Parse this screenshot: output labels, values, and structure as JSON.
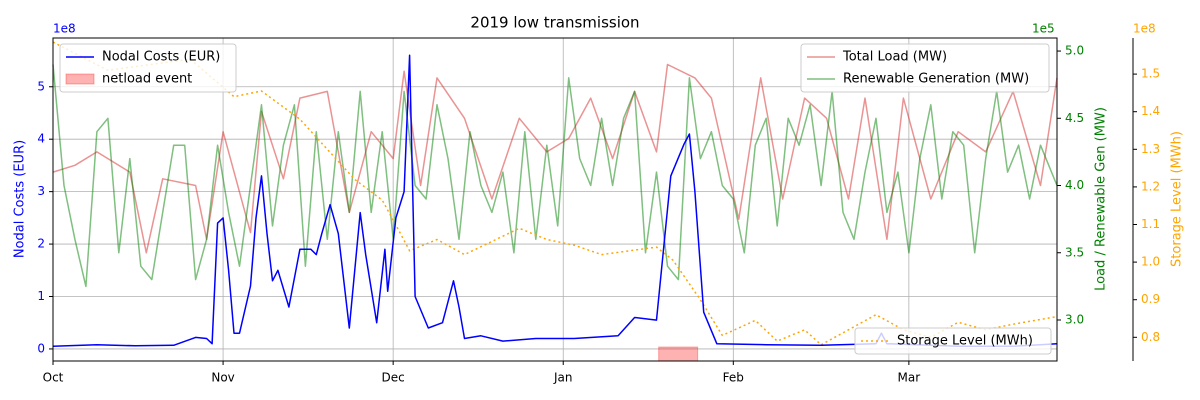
{
  "chart_data": {
    "type": "line",
    "title": "2019 low transmission",
    "grid": true,
    "xlim": [
      0,
      183
    ],
    "xticks": [
      {
        "value": 0,
        "label": "Oct"
      },
      {
        "value": 31,
        "label": "Nov"
      },
      {
        "value": 62,
        "label": "Dec"
      },
      {
        "value": 93,
        "label": "Jan"
      },
      {
        "value": 124,
        "label": "Feb"
      },
      {
        "value": 156,
        "label": "Mar"
      }
    ],
    "ylabel": "Nodal Costs (EUR)",
    "y_offset_text": "1e8",
    "ylim": [
      -0.23,
      5.93
    ],
    "yticks": [
      0,
      1,
      2,
      3,
      4,
      5
    ],
    "y2label": "Load / Renewable Gen (MW)",
    "y2_offset_text": "1e5",
    "y2lim": [
      2.695,
      5.097
    ],
    "y2ticks": [
      {
        "value": 3,
        "label": "3.0"
      },
      3.5,
      {
        "value": 4,
        "label": "4.0"
      },
      4.5,
      {
        "value": 5,
        "label": "5.0"
      }
    ],
    "y3label": "Storage Level (MWh)",
    "y3_offset_text": "1e8",
    "y3lim": [
      0.737,
      1.596
    ],
    "y3ticks": [
      0.8,
      0.9,
      {
        "value": 1,
        "label": "1.0"
      },
      1.1,
      1.2,
      1.3,
      1.4,
      1.5
    ],
    "spans": {
      "name": "netload event",
      "color": "#ff0000",
      "ranges": [
        [
          110.4,
          117.5
        ]
      ]
    },
    "series": [
      {
        "name": "Total Load (MW)",
        "color": "#d62728",
        "axis": "y2",
        "legend": "upper right",
        "x": [
          0,
          4,
          8,
          14,
          17,
          20,
          26,
          28,
          31,
          36,
          38,
          42,
          45,
          50,
          54,
          58,
          62,
          64,
          67,
          70,
          75,
          80,
          85,
          90,
          94,
          98,
          102,
          106,
          110,
          112,
          117,
          120,
          125,
          129,
          133,
          137,
          141,
          145,
          148,
          152,
          155,
          160,
          165,
          170,
          175,
          180,
          183
        ],
        "values": [
          4.1,
          4.15,
          4.25,
          4.1,
          3.5,
          4.05,
          4.0,
          3.6,
          4.4,
          3.65,
          4.55,
          4.05,
          4.65,
          4.7,
          3.8,
          4.4,
          4.2,
          4.85,
          4.0,
          4.8,
          4.5,
          3.9,
          4.5,
          4.25,
          4.35,
          4.65,
          4.2,
          4.7,
          4.25,
          4.9,
          4.8,
          4.65,
          3.75,
          4.8,
          3.9,
          4.65,
          4.5,
          3.9,
          4.65,
          3.6,
          4.65,
          3.9,
          4.4,
          4.25,
          4.7,
          4.0,
          4.8
        ]
      },
      {
        "name": "Renewable Generation (MW)",
        "color": "#008000",
        "axis": "y2",
        "legend": "upper right",
        "x": [
          0,
          2,
          4,
          6,
          8,
          10,
          12,
          14,
          16,
          18,
          20,
          22,
          24,
          26,
          28,
          30,
          32,
          34,
          36,
          38,
          40,
          42,
          44,
          46,
          48,
          50,
          52,
          54,
          56,
          58,
          60,
          62,
          64,
          66,
          68,
          70,
          72,
          74,
          76,
          78,
          80,
          82,
          84,
          86,
          88,
          90,
          92,
          94,
          96,
          98,
          100,
          102,
          104,
          106,
          108,
          110,
          112,
          114,
          116,
          118,
          120,
          122,
          124,
          126,
          128,
          130,
          132,
          134,
          136,
          138,
          140,
          142,
          144,
          146,
          148,
          150,
          152,
          154,
          156,
          158,
          160,
          162,
          164,
          166,
          168,
          170,
          172,
          174,
          176,
          178,
          180,
          183
        ],
        "values": [
          4.9,
          4.0,
          3.6,
          3.25,
          4.4,
          4.5,
          3.5,
          4.2,
          3.4,
          3.3,
          3.8,
          4.3,
          4.3,
          3.3,
          3.6,
          4.3,
          3.8,
          3.4,
          4.0,
          4.6,
          3.7,
          4.3,
          4.6,
          3.4,
          4.4,
          3.6,
          4.4,
          3.8,
          4.7,
          3.8,
          4.4,
          3.6,
          4.7,
          4.0,
          3.9,
          4.6,
          4.2,
          3.6,
          4.4,
          4.0,
          3.8,
          4.1,
          3.5,
          4.4,
          3.6,
          4.3,
          3.7,
          4.8,
          4.2,
          4.0,
          4.5,
          4.0,
          4.5,
          4.7,
          3.5,
          4.1,
          3.4,
          3.3,
          4.8,
          4.2,
          4.4,
          4.0,
          3.9,
          3.5,
          4.3,
          4.5,
          3.7,
          4.5,
          4.3,
          4.6,
          4.0,
          4.7,
          3.8,
          3.6,
          4.1,
          4.5,
          3.8,
          4.1,
          3.5,
          4.2,
          4.6,
          3.9,
          4.4,
          4.3,
          3.5,
          4.2,
          4.7,
          4.1,
          4.3,
          3.9,
          4.3,
          4.0
        ]
      },
      {
        "name": "Storage Level (MWh)",
        "color": "#ffa500",
        "axis": "y3",
        "legend": "lower right",
        "x": [
          0,
          10,
          25,
          33,
          38,
          45,
          55,
          60,
          63,
          65,
          70,
          75,
          85,
          90,
          95,
          100,
          110,
          113,
          118,
          122,
          128,
          132,
          137,
          140,
          145,
          150,
          155,
          160,
          165,
          170,
          175,
          183
        ],
        "values": [
          1.585,
          1.51,
          1.54,
          1.44,
          1.455,
          1.38,
          1.22,
          1.165,
          1.085,
          1.03,
          1.06,
          1.02,
          1.09,
          1.06,
          1.045,
          1.02,
          1.04,
          1.005,
          0.9,
          0.805,
          0.845,
          0.79,
          0.82,
          0.78,
          0.82,
          0.86,
          0.82,
          0.8,
          0.84,
          0.82,
          0.835,
          0.855
        ]
      },
      {
        "name": "Nodal Costs (EUR)",
        "color": "#0000ff",
        "axis": "y",
        "legend": "upper left",
        "x": [
          0,
          8,
          15,
          22,
          26,
          28,
          29,
          30,
          31,
          32,
          33,
          34,
          36,
          37,
          38,
          39,
          40,
          41,
          43,
          45,
          47,
          48,
          49,
          50.5,
          52,
          54,
          56,
          57,
          59,
          60.5,
          61,
          62.5,
          64,
          65,
          66,
          68.4,
          71,
          73,
          74,
          75,
          78,
          82,
          88,
          95,
          103,
          106,
          110,
          112.6,
          115,
          116,
          117,
          118.6,
          121,
          130,
          140,
          150,
          151,
          152,
          165,
          175,
          183
        ],
        "values": [
          0.05,
          0.08,
          0.06,
          0.07,
          0.22,
          0.2,
          0.1,
          2.4,
          2.5,
          1.5,
          0.3,
          0.3,
          1.2,
          2.5,
          3.3,
          2.2,
          1.3,
          1.5,
          0.8,
          1.9,
          1.9,
          1.8,
          2.2,
          2.75,
          2.2,
          0.4,
          2.6,
          1.8,
          0.5,
          1.9,
          1.1,
          2.5,
          3.0,
          5.6,
          1.0,
          0.4,
          0.5,
          1.3,
          0.8,
          0.2,
          0.25,
          0.15,
          0.2,
          0.2,
          0.25,
          0.6,
          0.55,
          3.3,
          3.9,
          4.1,
          3.0,
          0.7,
          0.1,
          0.08,
          0.07,
          0.1,
          0.3,
          0.1,
          0.05,
          0.05,
          0.1
        ]
      }
    ]
  }
}
